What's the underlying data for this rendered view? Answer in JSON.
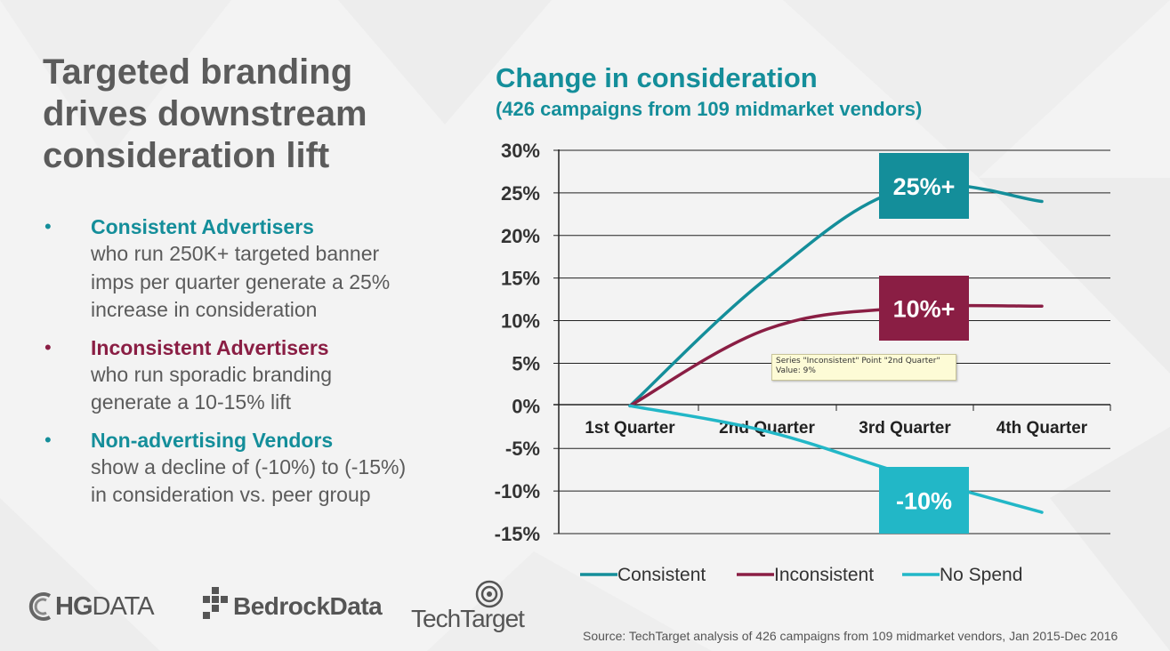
{
  "headline": [
    "Targeted branding",
    "drives downstream",
    "consideration lift"
  ],
  "bullets": [
    {
      "title": "Consistent Advertisers",
      "text": [
        "who run 250K+ targeted banner",
        "imps per quarter generate a 25%",
        "increase in consideration"
      ]
    },
    {
      "title": "Inconsistent Advertisers",
      "text": [
        "who run sporadic branding",
        "generate a 10-15% lift"
      ]
    },
    {
      "title": "Non-advertising Vendors",
      "text": [
        "show a decline of (-10%) to (-15%)",
        "in consideration vs. peer group"
      ]
    }
  ],
  "bullet_glyph": "•",
  "chart_data": {
    "type": "line",
    "title": "Change in consideration",
    "subtitle": "(426 campaigns from 109 midmarket vendors)",
    "categories": [
      "1st Quarter",
      "2nd Quarter",
      "3rd Quarter",
      "4th Quarter"
    ],
    "ylim": [
      -0.15,
      0.3
    ],
    "yticks": [
      0.3,
      0.25,
      0.2,
      0.15,
      0.1,
      0.05,
      0.0,
      -0.05,
      -0.1,
      -0.15
    ],
    "ytick_labels": [
      "30%",
      "25%",
      "20%",
      "15%",
      "10%",
      "5%",
      "0%",
      "-5%",
      "-10%",
      "-15%"
    ],
    "grid": true,
    "legend_position": "bottom",
    "series": [
      {
        "name": "Consistent",
        "color": "#148e9a",
        "values": [
          0,
          0.15,
          0.255,
          0.24
        ]
      },
      {
        "name": "Inconsistent",
        "color": "#8a1e44",
        "values": [
          0,
          0.09,
          0.115,
          0.117
        ]
      },
      {
        "name": "No Spend",
        "color": "#22b7c7",
        "values": [
          0,
          -0.03,
          -0.08,
          -0.125
        ]
      }
    ],
    "callouts": [
      {
        "text": "25%+",
        "color": "#148e9a",
        "series": 0
      },
      {
        "text": "10%+",
        "color": "#8a1e44",
        "series": 1
      },
      {
        "text": "-10%",
        "color": "#22b7c7",
        "series": 2
      }
    ],
    "tooltip": {
      "line1": "Series \"Inconsistent\" Point \"2nd Quarter\"",
      "line2": "Value: 9%"
    }
  },
  "logos": {
    "hg": {
      "bold": "HG",
      "light": "DATA",
      "icon": "hg-swirl-icon"
    },
    "bedrock": {
      "text": "BedrockData",
      "icon": "bedrock-blocks-icon"
    },
    "techtarget": {
      "text": "TechTarget",
      "icon": "eye-target-icon"
    }
  },
  "source": "Source: TechTarget analysis of  426 campaigns from 109 midmarket vendors, Jan 2015-Dec 2016"
}
